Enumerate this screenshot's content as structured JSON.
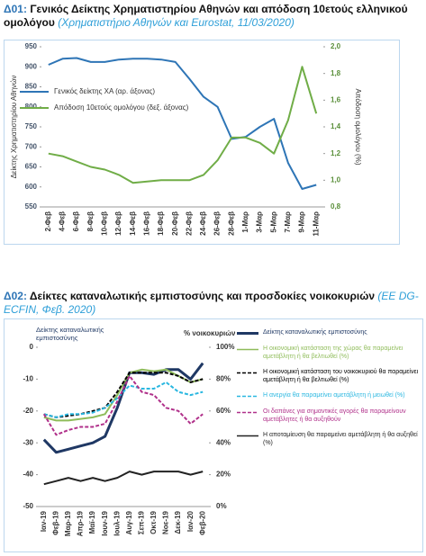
{
  "chart_data": [
    {
      "type": "line",
      "label": "Δ01:",
      "title": "Γενικός Δείκτης Χρηματιστηρίου Αθηνών και απόδοση 10ετούς ελληνικού ομολόγου",
      "source": "(Χρηματιστήριο Αθηνών και Eurostat, 11/03/2020)",
      "y_label": "Δείκτης Χρηματιστηρίου Αθηνών",
      "y2_label": "Απόδοση ομολόγου (%)",
      "categories": [
        "2-Φεβ",
        "4-Φεβ",
        "6-Φεβ",
        "8-Φεβ",
        "10-Φεβ",
        "12-Φεβ",
        "14-Φεβ",
        "16-Φεβ",
        "18-Φεβ",
        "20-Φεβ",
        "22-Φεβ",
        "24-Φεβ",
        "26-Φεβ",
        "28-Φεβ",
        "1-Μαρ",
        "3-Μαρ",
        "5-Μαρ",
        "7-Μαρ",
        "9-Μαρ",
        "11-Μαρ"
      ],
      "series": [
        {
          "name": "Γενικός δείκτης ΧΑ (αρ. άξονας)",
          "color": "#2e75b6",
          "line_style": "solid",
          "values": [
            905,
            920,
            922,
            912,
            912,
            918,
            920,
            920,
            918,
            912,
            870,
            825,
            800,
            720,
            725,
            750,
            770,
            660,
            595,
            605
          ]
        },
        {
          "name": "Απόδοση 10ετούς ομολόγου (δεξ. άξονας)",
          "color": "#70ad47",
          "line_style": "solid",
          "axis": "y2",
          "values": [
            1.2,
            1.18,
            1.14,
            1.1,
            1.08,
            1.04,
            0.98,
            0.99,
            1.0,
            1.0,
            1.0,
            1.04,
            1.15,
            1.32,
            1.32,
            1.28,
            1.2,
            1.45,
            1.85,
            1.5
          ]
        }
      ],
      "ylim": [
        550,
        950
      ],
      "yticks": [
        550,
        600,
        650,
        700,
        750,
        800,
        850,
        900,
        950
      ],
      "y2lim": [
        0.8,
        2.0
      ],
      "y2ticks": [
        {
          "value": 0.8,
          "label": "0,8"
        },
        {
          "value": 1.0,
          "label": "1,0"
        },
        {
          "value": 1.2,
          "label": "1,2"
        },
        {
          "value": 1.4,
          "label": "1,4"
        },
        {
          "value": 1.6,
          "label": "1,6"
        },
        {
          "value": 1.8,
          "label": "1,8"
        },
        {
          "value": 2.0,
          "label": "2,0"
        }
      ],
      "legend": "upper left",
      "grid": false
    },
    {
      "type": "line",
      "label": "Δ02:",
      "title": "Δείκτες καταναλωτικής εμπιστοσύνης και προσδοκίες νοικοκυριών",
      "source": "(ΕΕ DG-ECFIN, Φεβ. 2020)",
      "y_label": "Δείκτης καταναλωτικής εμπιστοσύνης",
      "y2_label": "% νοικοκυριών",
      "categories": [
        "Ιαν-19",
        "Φεβ-19",
        "Μαρ-19",
        "Απρ-19",
        "Μαϊ-19",
        "Ιουν-19",
        "Ιουλ-19",
        "Αυγ-19",
        "Σεπ-19",
        "Οκτ-19",
        "Νοε-19",
        "Δεκ-19",
        "Ιαν-20",
        "Φεβ-20"
      ],
      "series": [
        {
          "name": "Δείκτης καταναλωτικής εμπιστοσύνης",
          "color": "#1f3864",
          "line_style": "solid",
          "line_width": 3,
          "values": [
            -29,
            -33,
            -32,
            -31,
            -30,
            -28,
            -19,
            -8,
            -8,
            -8.5,
            -7,
            -7,
            -10,
            -5
          ]
        },
        {
          "name": "Η οικονομική κατάσταση της χώρας θα παραμείνει αμετάβλητη ή θα βελτιωθεί (%)",
          "color": "#8fbc5a",
          "line_style": "solid",
          "axis": "y2",
          "values": [
            56,
            54,
            54,
            55,
            56,
            58,
            70,
            84,
            86,
            85,
            86,
            82,
            78,
            80
          ]
        },
        {
          "name": "Η οικονομική κατάσταση του νοικοκυριού θα παραμείνει αμετάβλητη ή θα βελτιωθεί (%)",
          "color": "#000000",
          "line_style": "dashed",
          "axis": "y2",
          "values": [
            58,
            56,
            57,
            58,
            60,
            62,
            72,
            84,
            84,
            84,
            84,
            82,
            78,
            80
          ]
        },
        {
          "name": "Η ανεργία θα παραμείνει αμετάβλητη ή μειωθεί (%)",
          "color": "#2ab7e0",
          "line_style": "dashed",
          "axis": "y2",
          "values": [
            58,
            56,
            58,
            58,
            59,
            62,
            68,
            76,
            74,
            74,
            78,
            72,
            70,
            72
          ]
        },
        {
          "name": "Οι δαπάνες για σημαντικές αγορές θα παραμείνουν αμετάβλητες ή θα αυξηθούν",
          "color": "#b0308a",
          "line_style": "dashed",
          "axis": "y2",
          "values": [
            58,
            45,
            48,
            50,
            50,
            52,
            66,
            82,
            72,
            70,
            62,
            60,
            52,
            58
          ]
        },
        {
          "name": "Η αποταμίευση θα παραμείνει αμετάβλητη ή θα αυξηθεί (%)",
          "color": "#222222",
          "line_style": "solid",
          "axis": "y2",
          "values": [
            14,
            16,
            18,
            16,
            18,
            16,
            18,
            22,
            20,
            22,
            22,
            22,
            20,
            22
          ]
        }
      ],
      "ylim": [
        -50,
        0
      ],
      "yticks": [
        -50,
        -40,
        -30,
        -20,
        -10,
        0
      ],
      "y2lim": [
        0,
        100
      ],
      "y2ticks": [
        {
          "value": 0,
          "label": "0%"
        },
        {
          "value": 20,
          "label": "20%"
        },
        {
          "value": 40,
          "label": "40%"
        },
        {
          "value": 60,
          "label": "60%"
        },
        {
          "value": 80,
          "label": "80%"
        },
        {
          "value": 100,
          "label": "100%"
        }
      ],
      "legend": "right",
      "grid": false
    }
  ]
}
